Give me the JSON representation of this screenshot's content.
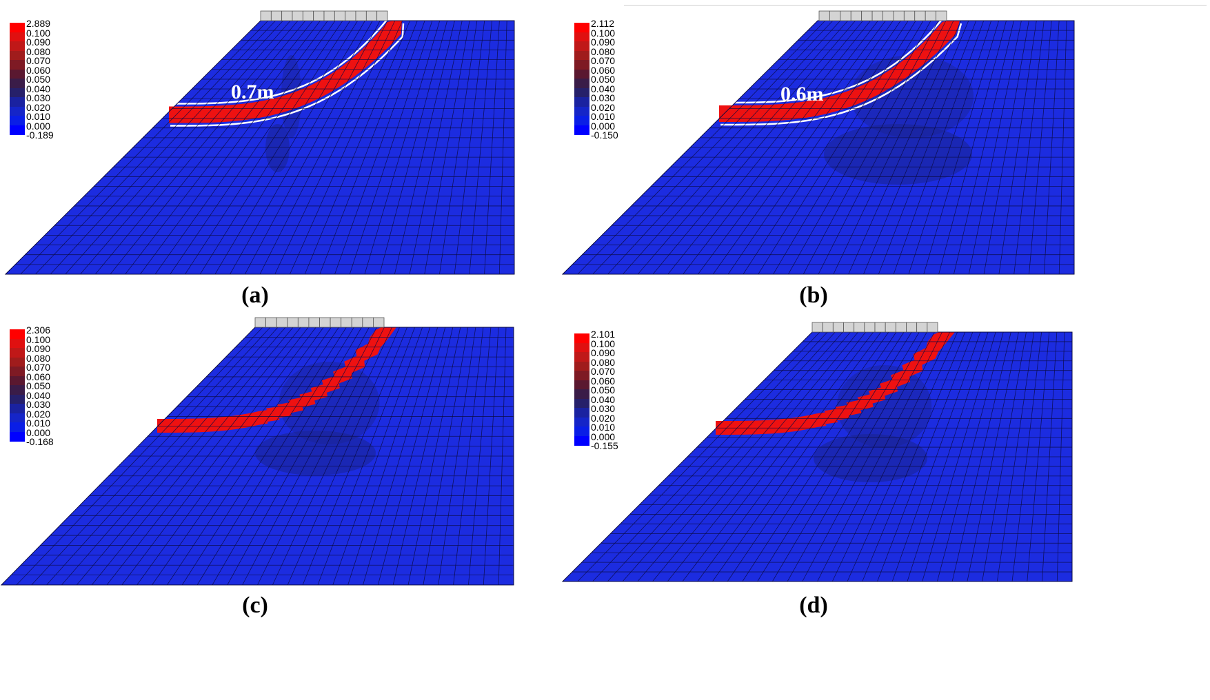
{
  "panels": [
    {
      "id": "a",
      "caption": "(a)",
      "legend": [
        "2.889",
        "0.100",
        "0.090",
        "0.080",
        "0.070",
        "0.060",
        "0.050",
        "0.040",
        "0.030",
        "0.020",
        "0.010",
        "0.000",
        "-0.189"
      ],
      "annotation": "0.7m",
      "band_style": "smooth"
    },
    {
      "id": "b",
      "caption": "(b)",
      "legend": [
        "2.112",
        "0.100",
        "0.090",
        "0.080",
        "0.070",
        "0.060",
        "0.050",
        "0.040",
        "0.030",
        "0.020",
        "0.010",
        "0.000",
        "-0.150"
      ],
      "annotation": "0.6m",
      "band_style": "smooth"
    },
    {
      "id": "c",
      "caption": "(c)",
      "legend": [
        "2.306",
        "0.100",
        "0.090",
        "0.080",
        "0.070",
        "0.060",
        "0.050",
        "0.040",
        "0.030",
        "0.020",
        "0.010",
        "0.000",
        "-0.168"
      ],
      "annotation": "",
      "band_style": "jagged"
    },
    {
      "id": "d",
      "caption": "(d)",
      "legend": [
        "2.101",
        "0.100",
        "0.090",
        "0.080",
        "0.070",
        "0.060",
        "0.050",
        "0.040",
        "0.030",
        "0.020",
        "0.010",
        "0.000",
        "-0.155"
      ],
      "annotation": "",
      "band_style": "jagged"
    }
  ],
  "legend_colors": [
    "#ff0000",
    "#e01010",
    "#c01818",
    "#a01c1c",
    "#7e1a24",
    "#5a1830",
    "#3a1c48",
    "#26206a",
    "#1a22a0",
    "#1525c8",
    "#0a1ee6",
    "#0000ff"
  ],
  "colors": {
    "soil": "#1c2ce0",
    "soil_dark": "#1a2490",
    "shear_band": "#ee1111",
    "mesh_line": "#0a0a40",
    "footing": "#d4d4d4",
    "outline": "#ffffff"
  }
}
